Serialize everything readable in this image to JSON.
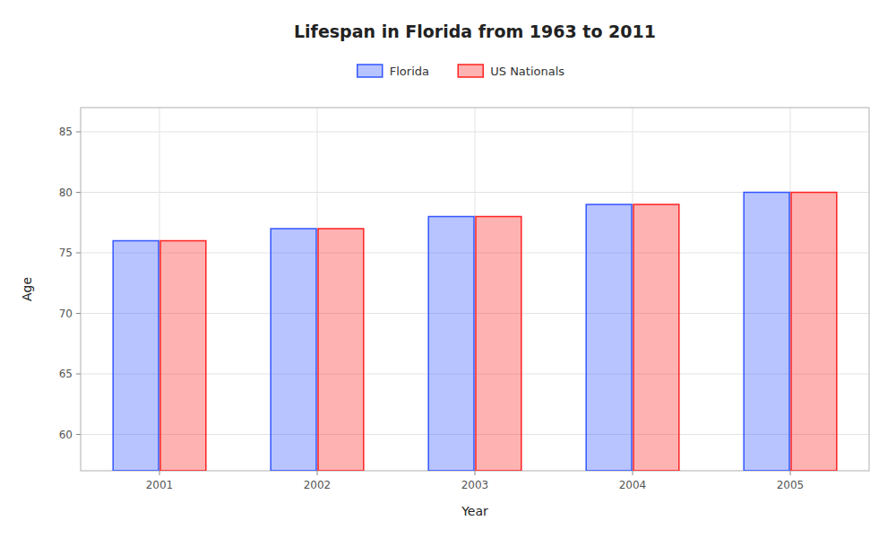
{
  "chart_data": {
    "type": "bar",
    "title": "Lifespan in Florida from 1963 to 2011",
    "xlabel": "Year",
    "ylabel": "Age",
    "categories": [
      "2001",
      "2002",
      "2003",
      "2004",
      "2005"
    ],
    "series": [
      {
        "name": "Florida",
        "color": "#3355ff",
        "values": [
          76,
          77,
          78,
          79,
          80
        ]
      },
      {
        "name": "US Nationals",
        "color": "#ff2222",
        "values": [
          76,
          77,
          78,
          79,
          80
        ]
      }
    ],
    "ylim": [
      57,
      87
    ],
    "yticks": [
      60,
      65,
      70,
      75,
      80,
      85
    ],
    "grid": true,
    "legend": "top"
  }
}
